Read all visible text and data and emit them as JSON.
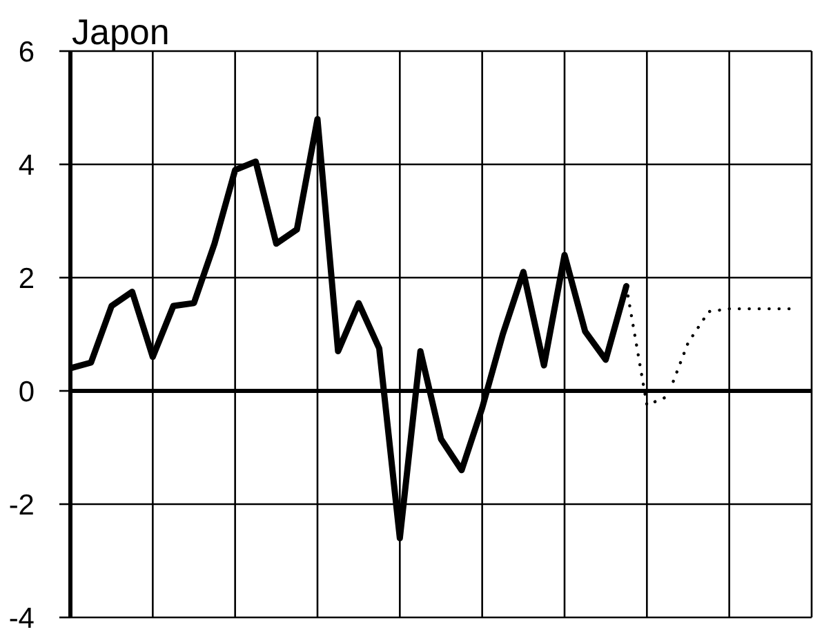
{
  "chart_data": {
    "type": "line",
    "title": "Japon",
    "categories": [
      null,
      null,
      null,
      null,
      null,
      null,
      null,
      null,
      null,
      null,
      null,
      null,
      null,
      null,
      null,
      null,
      null,
      null,
      null,
      null,
      null,
      null,
      null,
      null,
      null,
      null,
      null,
      null,
      null,
      null,
      null,
      null,
      null,
      null,
      null,
      null
    ],
    "ylim": [
      -4,
      6
    ],
    "yticks": [
      -4,
      -2,
      0,
      2,
      4,
      6
    ],
    "grid": true,
    "tick_labels": "y",
    "marker": "none",
    "ref_lines": [
      {
        "axis": "y",
        "value": 0,
        "color": "#000000"
      }
    ],
    "series": [
      {
        "color": "#000000",
        "line_style": "solid",
        "values": [
          0.4,
          0.5,
          1.5,
          1.75,
          0.6,
          1.5,
          1.55,
          2.6,
          3.9,
          4.05,
          2.6,
          2.85,
          4.8,
          0.7,
          1.55,
          0.75,
          -2.6,
          0.7,
          -0.85,
          -1.4,
          -0.3,
          1.0,
          2.1,
          0.45,
          2.4,
          1.05,
          0.55,
          1.85,
          null,
          null,
          null,
          null,
          null,
          null,
          null,
          null
        ]
      },
      {
        "color": "#000000",
        "line_style": "dotted",
        "values": [
          null,
          null,
          null,
          null,
          null,
          null,
          null,
          null,
          null,
          null,
          null,
          null,
          null,
          null,
          null,
          null,
          null,
          null,
          null,
          null,
          null,
          null,
          null,
          null,
          null,
          null,
          null,
          1.85,
          -0.25,
          -0.1,
          0.85,
          1.4,
          1.45,
          1.45,
          1.45,
          1.45
        ]
      }
    ]
  }
}
